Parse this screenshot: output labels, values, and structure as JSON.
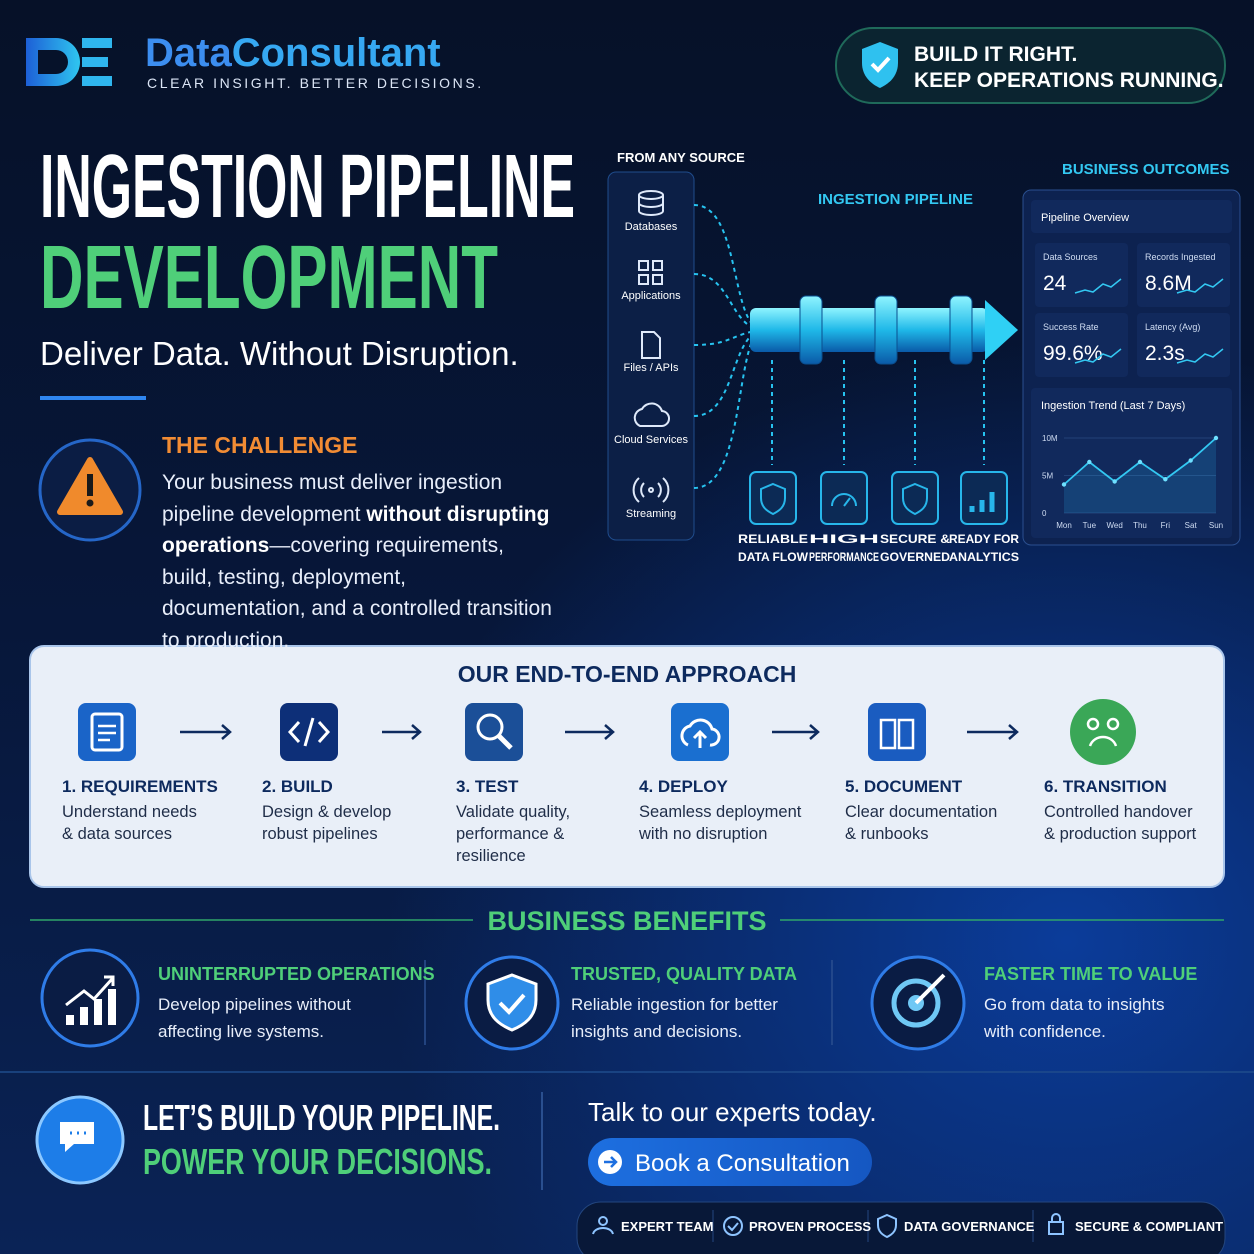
{
  "header": {
    "brand_first": "Data",
    "brand_second": "Consultant",
    "tagline": "CLEAR INSIGHT. BETTER DECISIONS.",
    "badge": [
      "BUILD IT RIGHT.",
      "KEEP OPERATIONS RUNNING."
    ]
  },
  "hero": {
    "title_line1": "INGESTION PIPELINE",
    "title_line2": "DEVELOPMENT",
    "subtitle": "Deliver Data. Without Disruption."
  },
  "challenge": {
    "heading": "THE CHALLENGE",
    "text_before": "Your business must deliver ingestion pipeline development ",
    "text_bold": "without disrupting operations",
    "text_after": "—covering requirements, build, testing, deployment, documentation, and a controlled transition to production."
  },
  "diagram": {
    "sources_heading": "FROM ANY SOURCE",
    "sources": [
      "Databases",
      "Applications",
      "Files / APIs",
      "Cloud Services",
      "Streaming"
    ],
    "pipeline_label": "INGESTION PIPELINE",
    "features": [
      [
        "RELIABLE",
        "DATA FLOW"
      ],
      [
        "HIGH",
        "PERFORMANCE"
      ],
      [
        "SECURE &",
        "GOVERNED"
      ],
      [
        "READY FOR",
        "ANALYTICS"
      ]
    ]
  },
  "dashboard": {
    "heading": "BUSINESS OUTCOMES",
    "panel_title": "Pipeline Overview",
    "kpis": [
      {
        "label": "Data Sources",
        "value": "24"
      },
      {
        "label": "Records Ingested",
        "value": "8.6M"
      },
      {
        "label": "Success Rate",
        "value": "99.6%"
      },
      {
        "label": "Latency (Avg)",
        "value": "2.3s"
      }
    ],
    "trend": {
      "title": "Ingestion Trend (Last 7 Days)",
      "categories": [
        "Mon",
        "Tue",
        "Wed",
        "Thu",
        "Fri",
        "Sat",
        "Sun"
      ],
      "values": [
        3800000,
        6800000,
        4200000,
        6800000,
        4500000,
        7000000,
        10000000
      ],
      "ylim": [
        0,
        10000000
      ],
      "yticks": [
        0,
        {
          "value": 5000000,
          "label": "5M"
        },
        {
          "value": 10000000,
          "label": "10M"
        }
      ]
    }
  },
  "approach": {
    "title": "OUR END-TO-END APPROACH",
    "steps": [
      {
        "title": "1. REQUIREMENTS",
        "description": [
          "Understand needs",
          "& data sources"
        ]
      },
      {
        "title": "2. BUILD",
        "description": [
          "Design & develop",
          "robust pipelines"
        ]
      },
      {
        "title": "3. TEST",
        "description": [
          "Validate quality,",
          "performance &",
          "resilience"
        ]
      },
      {
        "title": "4. DEPLOY",
        "description": [
          "Seamless deployment",
          "with no disruption"
        ]
      },
      {
        "title": "5. DOCUMENT",
        "description": [
          "Clear documentation",
          "& runbooks"
        ]
      },
      {
        "title": "6. TRANSITION",
        "description": [
          "Controlled handover",
          "& production support"
        ]
      }
    ]
  },
  "benefits": {
    "title": "BUSINESS BENEFITS",
    "items": [
      {
        "title": "UNINTERRUPTED OPERATIONS",
        "description": [
          "Develop pipelines without",
          "affecting live systems."
        ]
      },
      {
        "title": "TRUSTED, QUALITY DATA",
        "description": [
          "Reliable ingestion for better",
          "insights and decisions."
        ]
      },
      {
        "title": "FASTER TIME TO VALUE",
        "description": [
          "Go from data to insights",
          "with confidence."
        ]
      }
    ]
  },
  "cta": {
    "headline": [
      "LET’S BUILD YOUR PIPELINE.",
      "POWER YOUR DECISIONS."
    ],
    "prompt": "Talk to our experts today.",
    "button": "Book a Consultation",
    "badges": [
      "EXPERT TEAM",
      "PROVEN PROCESS",
      "DATA GOVERNANCE",
      "SECURE & COMPLIANT"
    ]
  }
}
